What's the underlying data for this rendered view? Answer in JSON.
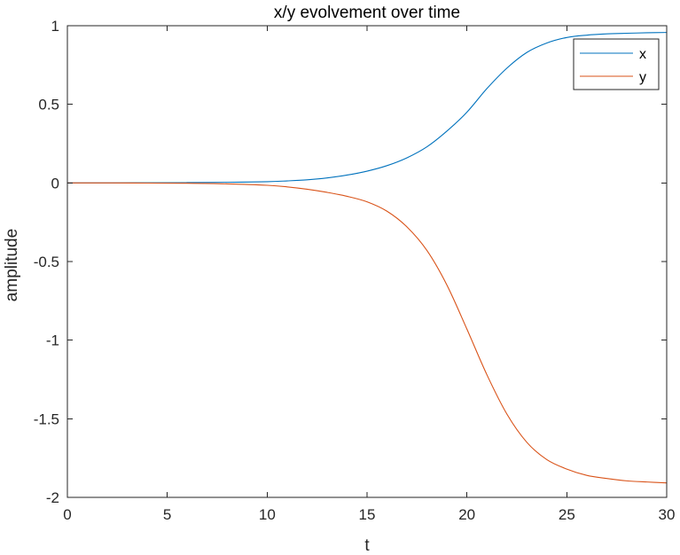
{
  "chart_data": {
    "type": "line",
    "title": "x/y evolvement over time",
    "xlabel": "t",
    "ylabel": "amplitude",
    "xlim": [
      0,
      30
    ],
    "ylim": [
      -2,
      1
    ],
    "xticks": [
      0,
      5,
      10,
      15,
      20,
      25,
      30
    ],
    "yticks": [
      1,
      0.5,
      0,
      -0.5,
      -1,
      -1.5,
      -2
    ],
    "xtick_labels": [
      "0",
      "5",
      "10",
      "15",
      "20",
      "25",
      "30"
    ],
    "ytick_labels": [
      "1",
      "0.5",
      "0",
      "-0.5",
      "-1",
      "-1.5",
      "-2"
    ],
    "grid": false,
    "legend": "top-right",
    "series": [
      {
        "name": "x",
        "color": "#0072BD",
        "x": [
          0,
          2,
          4,
          6,
          8,
          10,
          11,
          12,
          13,
          14,
          15,
          16,
          17,
          18,
          19,
          20,
          21,
          22,
          23,
          24,
          25,
          26,
          27,
          28,
          29,
          30
        ],
        "y": [
          0.0,
          0.0,
          0.001,
          0.002,
          0.004,
          0.008,
          0.013,
          0.02,
          0.032,
          0.05,
          0.075,
          0.11,
          0.16,
          0.23,
          0.33,
          0.45,
          0.6,
          0.73,
          0.83,
          0.89,
          0.925,
          0.94,
          0.948,
          0.952,
          0.955,
          0.957
        ]
      },
      {
        "name": "y",
        "color": "#D95319",
        "x": [
          0,
          2,
          4,
          6,
          8,
          10,
          11,
          12,
          13,
          14,
          15,
          16,
          17,
          18,
          19,
          20,
          21,
          22,
          23,
          24,
          25,
          26,
          27,
          28,
          29,
          30
        ],
        "y": [
          0.0,
          0.0,
          -0.001,
          -0.002,
          -0.006,
          -0.015,
          -0.025,
          -0.04,
          -0.06,
          -0.085,
          -0.12,
          -0.18,
          -0.28,
          -0.43,
          -0.65,
          -0.93,
          -1.22,
          -1.47,
          -1.65,
          -1.76,
          -1.82,
          -1.86,
          -1.88,
          -1.895,
          -1.902,
          -1.908
        ]
      }
    ]
  }
}
